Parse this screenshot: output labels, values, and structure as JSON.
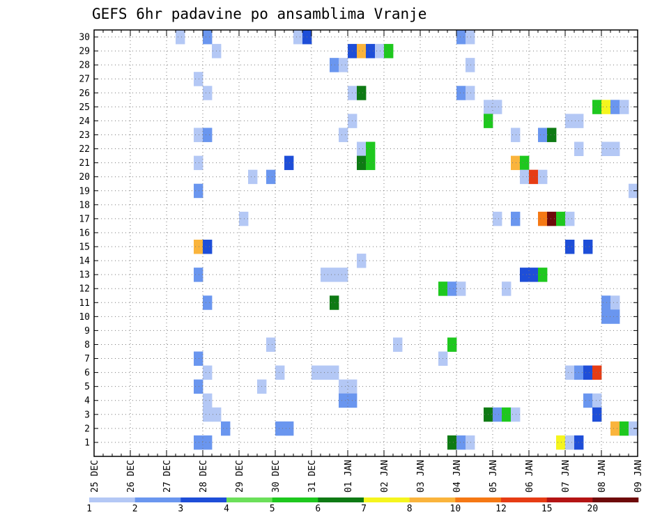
{
  "chart_data": {
    "type": "heatmap",
    "title": "GEFS 6hr padavine po ansamblima Vranje",
    "x_tick_labels": [
      "25 DEC",
      "26 DEC",
      "27 DEC",
      "28 DEC",
      "29 DEC",
      "30 DEC",
      "31 DEC",
      "01 JAN",
      "02 JAN",
      "03 JAN",
      "04 JAN",
      "05 JAN",
      "06 JAN",
      "07 JAN",
      "08 JAN",
      "09 JAN"
    ],
    "y_range": [
      0,
      30
    ],
    "y_ticks": [
      1,
      2,
      3,
      4,
      5,
      6,
      7,
      8,
      9,
      10,
      11,
      12,
      13,
      14,
      15,
      16,
      17,
      18,
      19,
      20,
      21,
      22,
      23,
      24,
      25,
      26,
      27,
      28,
      29,
      30
    ],
    "grid": true,
    "legend": {
      "placement": "bottom",
      "labels": [
        "1",
        "2",
        "3",
        "4",
        "5",
        "6",
        "7",
        "8",
        "10",
        "12",
        "15",
        "20"
      ],
      "bins": [
        {
          "from": 1,
          "to": 2,
          "color": "#b4c8f5"
        },
        {
          "from": 2,
          "to": 3,
          "color": "#6a96ef"
        },
        {
          "from": 3,
          "to": 4,
          "color": "#1e4ed8"
        },
        {
          "from": 4,
          "to": 5,
          "color": "#6ce05a"
        },
        {
          "from": 5,
          "to": 6,
          "color": "#1ec81e"
        },
        {
          "from": 6,
          "to": 7,
          "color": "#0e7a14"
        },
        {
          "from": 7,
          "to": 8,
          "color": "#f5f51e"
        },
        {
          "from": 8,
          "to": 10,
          "color": "#fab43c"
        },
        {
          "from": 10,
          "to": 12,
          "color": "#f57814"
        },
        {
          "from": 12,
          "to": 15,
          "color": "#e63c14"
        },
        {
          "from": 15,
          "to": 20,
          "color": "#b41414"
        },
        {
          "from": 20,
          "to": 25,
          "color": "#6e0a0a"
        }
      ]
    },
    "cells": [
      {
        "t": 9,
        "m": 30,
        "c": 0
      },
      {
        "t": 12,
        "m": 30,
        "c": 1
      },
      {
        "t": 22,
        "m": 30,
        "c": 0
      },
      {
        "t": 23,
        "m": 30,
        "c": 2
      },
      {
        "t": 40,
        "m": 30,
        "c": 1
      },
      {
        "t": 41,
        "m": 30,
        "c": 0
      },
      {
        "t": 13,
        "m": 29,
        "c": 0
      },
      {
        "t": 28,
        "m": 29,
        "c": 2
      },
      {
        "t": 29,
        "m": 29,
        "c": 7
      },
      {
        "t": 30,
        "m": 29,
        "c": 2
      },
      {
        "t": 31,
        "m": 29,
        "c": 0
      },
      {
        "t": 32,
        "m": 29,
        "c": 4
      },
      {
        "t": 26,
        "m": 28,
        "c": 1
      },
      {
        "t": 27,
        "m": 28,
        "c": 0
      },
      {
        "t": 41,
        "m": 28,
        "c": 0
      },
      {
        "t": 11,
        "m": 27,
        "c": 0
      },
      {
        "t": 12,
        "m": 26,
        "c": 0
      },
      {
        "t": 28,
        "m": 26,
        "c": 0
      },
      {
        "t": 29,
        "m": 26,
        "c": 5
      },
      {
        "t": 40,
        "m": 26,
        "c": 1
      },
      {
        "t": 41,
        "m": 26,
        "c": 0
      },
      {
        "t": 43,
        "m": 25,
        "c": 0
      },
      {
        "t": 44,
        "m": 25,
        "c": 0
      },
      {
        "t": 55,
        "m": 25,
        "c": 4
      },
      {
        "t": 56,
        "m": 25,
        "c": 6
      },
      {
        "t": 57,
        "m": 25,
        "c": 1
      },
      {
        "t": 58,
        "m": 25,
        "c": 0
      },
      {
        "t": 28,
        "m": 24,
        "c": 0
      },
      {
        "t": 43,
        "m": 24,
        "c": 4
      },
      {
        "t": 52,
        "m": 24,
        "c": 0
      },
      {
        "t": 53,
        "m": 24,
        "c": 0
      },
      {
        "t": 11,
        "m": 23,
        "c": 0
      },
      {
        "t": 12,
        "m": 23,
        "c": 1
      },
      {
        "t": 27,
        "m": 23,
        "c": 0
      },
      {
        "t": 46,
        "m": 23,
        "c": 0
      },
      {
        "t": 49,
        "m": 23,
        "c": 1
      },
      {
        "t": 50,
        "m": 23,
        "c": 5
      },
      {
        "t": 29,
        "m": 22,
        "c": 0
      },
      {
        "t": 30,
        "m": 22,
        "c": 4
      },
      {
        "t": 53,
        "m": 22,
        "c": 0
      },
      {
        "t": 56,
        "m": 22,
        "c": 0
      },
      {
        "t": 57,
        "m": 22,
        "c": 0
      },
      {
        "t": 11,
        "m": 21,
        "c": 0
      },
      {
        "t": 21,
        "m": 21,
        "c": 2
      },
      {
        "t": 29,
        "m": 21,
        "c": 5
      },
      {
        "t": 30,
        "m": 21,
        "c": 4
      },
      {
        "t": 46,
        "m": 21,
        "c": 7
      },
      {
        "t": 47,
        "m": 21,
        "c": 4
      },
      {
        "t": 17,
        "m": 20,
        "c": 0
      },
      {
        "t": 19,
        "m": 20,
        "c": 1
      },
      {
        "t": 47,
        "m": 20,
        "c": 0
      },
      {
        "t": 48,
        "m": 20,
        "c": 9
      },
      {
        "t": 49,
        "m": 20,
        "c": 0
      },
      {
        "t": 11,
        "m": 19,
        "c": 1
      },
      {
        "t": 59,
        "m": 19,
        "c": 0
      },
      {
        "t": 16,
        "m": 17,
        "c": 0
      },
      {
        "t": 44,
        "m": 17,
        "c": 0
      },
      {
        "t": 46,
        "m": 17,
        "c": 1
      },
      {
        "t": 49,
        "m": 17,
        "c": 8
      },
      {
        "t": 50,
        "m": 17,
        "c": 11
      },
      {
        "t": 51,
        "m": 17,
        "c": 4
      },
      {
        "t": 52,
        "m": 17,
        "c": 0
      },
      {
        "t": 11,
        "m": 15,
        "c": 7
      },
      {
        "t": 12,
        "m": 15,
        "c": 2
      },
      {
        "t": 52,
        "m": 15,
        "c": 2
      },
      {
        "t": 54,
        "m": 15,
        "c": 2
      },
      {
        "t": 29,
        "m": 14,
        "c": 0
      },
      {
        "t": 11,
        "m": 13,
        "c": 1
      },
      {
        "t": 25,
        "m": 13,
        "c": 0
      },
      {
        "t": 26,
        "m": 13,
        "c": 0
      },
      {
        "t": 27,
        "m": 13,
        "c": 0
      },
      {
        "t": 47,
        "m": 13,
        "c": 2
      },
      {
        "t": 48,
        "m": 13,
        "c": 2
      },
      {
        "t": 49,
        "m": 13,
        "c": 4
      },
      {
        "t": 38,
        "m": 12,
        "c": 4
      },
      {
        "t": 39,
        "m": 12,
        "c": 1
      },
      {
        "t": 40,
        "m": 12,
        "c": 0
      },
      {
        "t": 45,
        "m": 12,
        "c": 0
      },
      {
        "t": 12,
        "m": 11,
        "c": 1
      },
      {
        "t": 26,
        "m": 11,
        "c": 5
      },
      {
        "t": 56,
        "m": 11,
        "c": 1
      },
      {
        "t": 57,
        "m": 11,
        "c": 0
      },
      {
        "t": 56,
        "m": 10,
        "c": 1
      },
      {
        "t": 57,
        "m": 10,
        "c": 1
      },
      {
        "t": 19,
        "m": 8,
        "c": 0
      },
      {
        "t": 33,
        "m": 8,
        "c": 0
      },
      {
        "t": 39,
        "m": 8,
        "c": 4
      },
      {
        "t": 11,
        "m": 7,
        "c": 1
      },
      {
        "t": 38,
        "m": 7,
        "c": 0
      },
      {
        "t": 12,
        "m": 6,
        "c": 0
      },
      {
        "t": 20,
        "m": 6,
        "c": 0
      },
      {
        "t": 24,
        "m": 6,
        "c": 0
      },
      {
        "t": 25,
        "m": 6,
        "c": 0
      },
      {
        "t": 26,
        "m": 6,
        "c": 0
      },
      {
        "t": 52,
        "m": 6,
        "c": 0
      },
      {
        "t": 53,
        "m": 6,
        "c": 1
      },
      {
        "t": 54,
        "m": 6,
        "c": 2
      },
      {
        "t": 55,
        "m": 6,
        "c": 9
      },
      {
        "t": 11,
        "m": 5,
        "c": 1
      },
      {
        "t": 18,
        "m": 5,
        "c": 0
      },
      {
        "t": 27,
        "m": 5,
        "c": 0
      },
      {
        "t": 28,
        "m": 5,
        "c": 0
      },
      {
        "t": 12,
        "m": 4,
        "c": 0
      },
      {
        "t": 27,
        "m": 4,
        "c": 1
      },
      {
        "t": 28,
        "m": 4,
        "c": 1
      },
      {
        "t": 54,
        "m": 4,
        "c": 1
      },
      {
        "t": 55,
        "m": 4,
        "c": 0
      },
      {
        "t": 12,
        "m": 3,
        "c": 0
      },
      {
        "t": 13,
        "m": 3,
        "c": 0
      },
      {
        "t": 43,
        "m": 3,
        "c": 5
      },
      {
        "t": 44,
        "m": 3,
        "c": 1
      },
      {
        "t": 45,
        "m": 3,
        "c": 4
      },
      {
        "t": 46,
        "m": 3,
        "c": 0
      },
      {
        "t": 55,
        "m": 3,
        "c": 2
      },
      {
        "t": 14,
        "m": 2,
        "c": 1
      },
      {
        "t": 20,
        "m": 2,
        "c": 1
      },
      {
        "t": 21,
        "m": 2,
        "c": 1
      },
      {
        "t": 57,
        "m": 2,
        "c": 7
      },
      {
        "t": 58,
        "m": 2,
        "c": 4
      },
      {
        "t": 59,
        "m": 2,
        "c": 0
      },
      {
        "t": 11,
        "m": 1,
        "c": 1
      },
      {
        "t": 12,
        "m": 1,
        "c": 1
      },
      {
        "t": 39,
        "m": 1,
        "c": 5
      },
      {
        "t": 40,
        "m": 1,
        "c": 1
      },
      {
        "t": 41,
        "m": 1,
        "c": 0
      },
      {
        "t": 51,
        "m": 1,
        "c": 6
      },
      {
        "t": 52,
        "m": 1,
        "c": 0
      },
      {
        "t": 53,
        "m": 1,
        "c": 2
      }
    ]
  }
}
